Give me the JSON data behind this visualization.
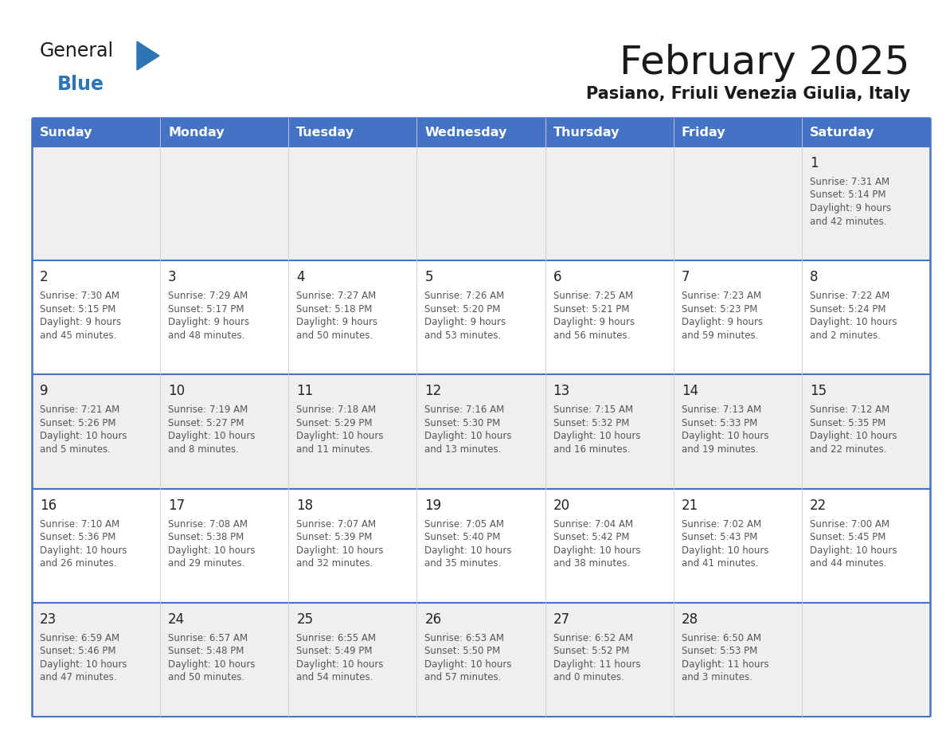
{
  "title": "February 2025",
  "subtitle": "Pasiano, Friuli Venezia Giulia, Italy",
  "days_of_week": [
    "Sunday",
    "Monday",
    "Tuesday",
    "Wednesday",
    "Thursday",
    "Friday",
    "Saturday"
  ],
  "header_bg": "#4472C4",
  "header_text": "#FFFFFF",
  "row_bg_odd": "#EFEFEF",
  "row_bg_even": "#FFFFFF",
  "border_color": "#4472C4",
  "title_color": "#1a1a1a",
  "subtitle_color": "#1a1a1a",
  "cell_text_color": "#555555",
  "day_num_color": "#222222",
  "logo_general_color": "#1a1a1a",
  "logo_blue_color": "#2E75B6",
  "logo_triangle_color": "#2E75B6",
  "weeks": [
    [
      {
        "day": null,
        "sunrise": null,
        "sunset": null,
        "daylight_line1": null,
        "daylight_line2": null
      },
      {
        "day": null,
        "sunrise": null,
        "sunset": null,
        "daylight_line1": null,
        "daylight_line2": null
      },
      {
        "day": null,
        "sunrise": null,
        "sunset": null,
        "daylight_line1": null,
        "daylight_line2": null
      },
      {
        "day": null,
        "sunrise": null,
        "sunset": null,
        "daylight_line1": null,
        "daylight_line2": null
      },
      {
        "day": null,
        "sunrise": null,
        "sunset": null,
        "daylight_line1": null,
        "daylight_line2": null
      },
      {
        "day": null,
        "sunrise": null,
        "sunset": null,
        "daylight_line1": null,
        "daylight_line2": null
      },
      {
        "day": 1,
        "sunrise": "7:31 AM",
        "sunset": "5:14 PM",
        "daylight_line1": "9 hours",
        "daylight_line2": "and 42 minutes."
      }
    ],
    [
      {
        "day": 2,
        "sunrise": "7:30 AM",
        "sunset": "5:15 PM",
        "daylight_line1": "9 hours",
        "daylight_line2": "and 45 minutes."
      },
      {
        "day": 3,
        "sunrise": "7:29 AM",
        "sunset": "5:17 PM",
        "daylight_line1": "9 hours",
        "daylight_line2": "and 48 minutes."
      },
      {
        "day": 4,
        "sunrise": "7:27 AM",
        "sunset": "5:18 PM",
        "daylight_line1": "9 hours",
        "daylight_line2": "and 50 minutes."
      },
      {
        "day": 5,
        "sunrise": "7:26 AM",
        "sunset": "5:20 PM",
        "daylight_line1": "9 hours",
        "daylight_line2": "and 53 minutes."
      },
      {
        "day": 6,
        "sunrise": "7:25 AM",
        "sunset": "5:21 PM",
        "daylight_line1": "9 hours",
        "daylight_line2": "and 56 minutes."
      },
      {
        "day": 7,
        "sunrise": "7:23 AM",
        "sunset": "5:23 PM",
        "daylight_line1": "9 hours",
        "daylight_line2": "and 59 minutes."
      },
      {
        "day": 8,
        "sunrise": "7:22 AM",
        "sunset": "5:24 PM",
        "daylight_line1": "10 hours",
        "daylight_line2": "and 2 minutes."
      }
    ],
    [
      {
        "day": 9,
        "sunrise": "7:21 AM",
        "sunset": "5:26 PM",
        "daylight_line1": "10 hours",
        "daylight_line2": "and 5 minutes."
      },
      {
        "day": 10,
        "sunrise": "7:19 AM",
        "sunset": "5:27 PM",
        "daylight_line1": "10 hours",
        "daylight_line2": "and 8 minutes."
      },
      {
        "day": 11,
        "sunrise": "7:18 AM",
        "sunset": "5:29 PM",
        "daylight_line1": "10 hours",
        "daylight_line2": "and 11 minutes."
      },
      {
        "day": 12,
        "sunrise": "7:16 AM",
        "sunset": "5:30 PM",
        "daylight_line1": "10 hours",
        "daylight_line2": "and 13 minutes."
      },
      {
        "day": 13,
        "sunrise": "7:15 AM",
        "sunset": "5:32 PM",
        "daylight_line1": "10 hours",
        "daylight_line2": "and 16 minutes."
      },
      {
        "day": 14,
        "sunrise": "7:13 AM",
        "sunset": "5:33 PM",
        "daylight_line1": "10 hours",
        "daylight_line2": "and 19 minutes."
      },
      {
        "day": 15,
        "sunrise": "7:12 AM",
        "sunset": "5:35 PM",
        "daylight_line1": "10 hours",
        "daylight_line2": "and 22 minutes."
      }
    ],
    [
      {
        "day": 16,
        "sunrise": "7:10 AM",
        "sunset": "5:36 PM",
        "daylight_line1": "10 hours",
        "daylight_line2": "and 26 minutes."
      },
      {
        "day": 17,
        "sunrise": "7:08 AM",
        "sunset": "5:38 PM",
        "daylight_line1": "10 hours",
        "daylight_line2": "and 29 minutes."
      },
      {
        "day": 18,
        "sunrise": "7:07 AM",
        "sunset": "5:39 PM",
        "daylight_line1": "10 hours",
        "daylight_line2": "and 32 minutes."
      },
      {
        "day": 19,
        "sunrise": "7:05 AM",
        "sunset": "5:40 PM",
        "daylight_line1": "10 hours",
        "daylight_line2": "and 35 minutes."
      },
      {
        "day": 20,
        "sunrise": "7:04 AM",
        "sunset": "5:42 PM",
        "daylight_line1": "10 hours",
        "daylight_line2": "and 38 minutes."
      },
      {
        "day": 21,
        "sunrise": "7:02 AM",
        "sunset": "5:43 PM",
        "daylight_line1": "10 hours",
        "daylight_line2": "and 41 minutes."
      },
      {
        "day": 22,
        "sunrise": "7:00 AM",
        "sunset": "5:45 PM",
        "daylight_line1": "10 hours",
        "daylight_line2": "and 44 minutes."
      }
    ],
    [
      {
        "day": 23,
        "sunrise": "6:59 AM",
        "sunset": "5:46 PM",
        "daylight_line1": "10 hours",
        "daylight_line2": "and 47 minutes."
      },
      {
        "day": 24,
        "sunrise": "6:57 AM",
        "sunset": "5:48 PM",
        "daylight_line1": "10 hours",
        "daylight_line2": "and 50 minutes."
      },
      {
        "day": 25,
        "sunrise": "6:55 AM",
        "sunset": "5:49 PM",
        "daylight_line1": "10 hours",
        "daylight_line2": "and 54 minutes."
      },
      {
        "day": 26,
        "sunrise": "6:53 AM",
        "sunset": "5:50 PM",
        "daylight_line1": "10 hours",
        "daylight_line2": "and 57 minutes."
      },
      {
        "day": 27,
        "sunrise": "6:52 AM",
        "sunset": "5:52 PM",
        "daylight_line1": "11 hours",
        "daylight_line2": "and 0 minutes."
      },
      {
        "day": 28,
        "sunrise": "6:50 AM",
        "sunset": "5:53 PM",
        "daylight_line1": "11 hours",
        "daylight_line2": "and 3 minutes."
      },
      {
        "day": null,
        "sunrise": null,
        "sunset": null,
        "daylight_line1": null,
        "daylight_line2": null
      }
    ]
  ]
}
